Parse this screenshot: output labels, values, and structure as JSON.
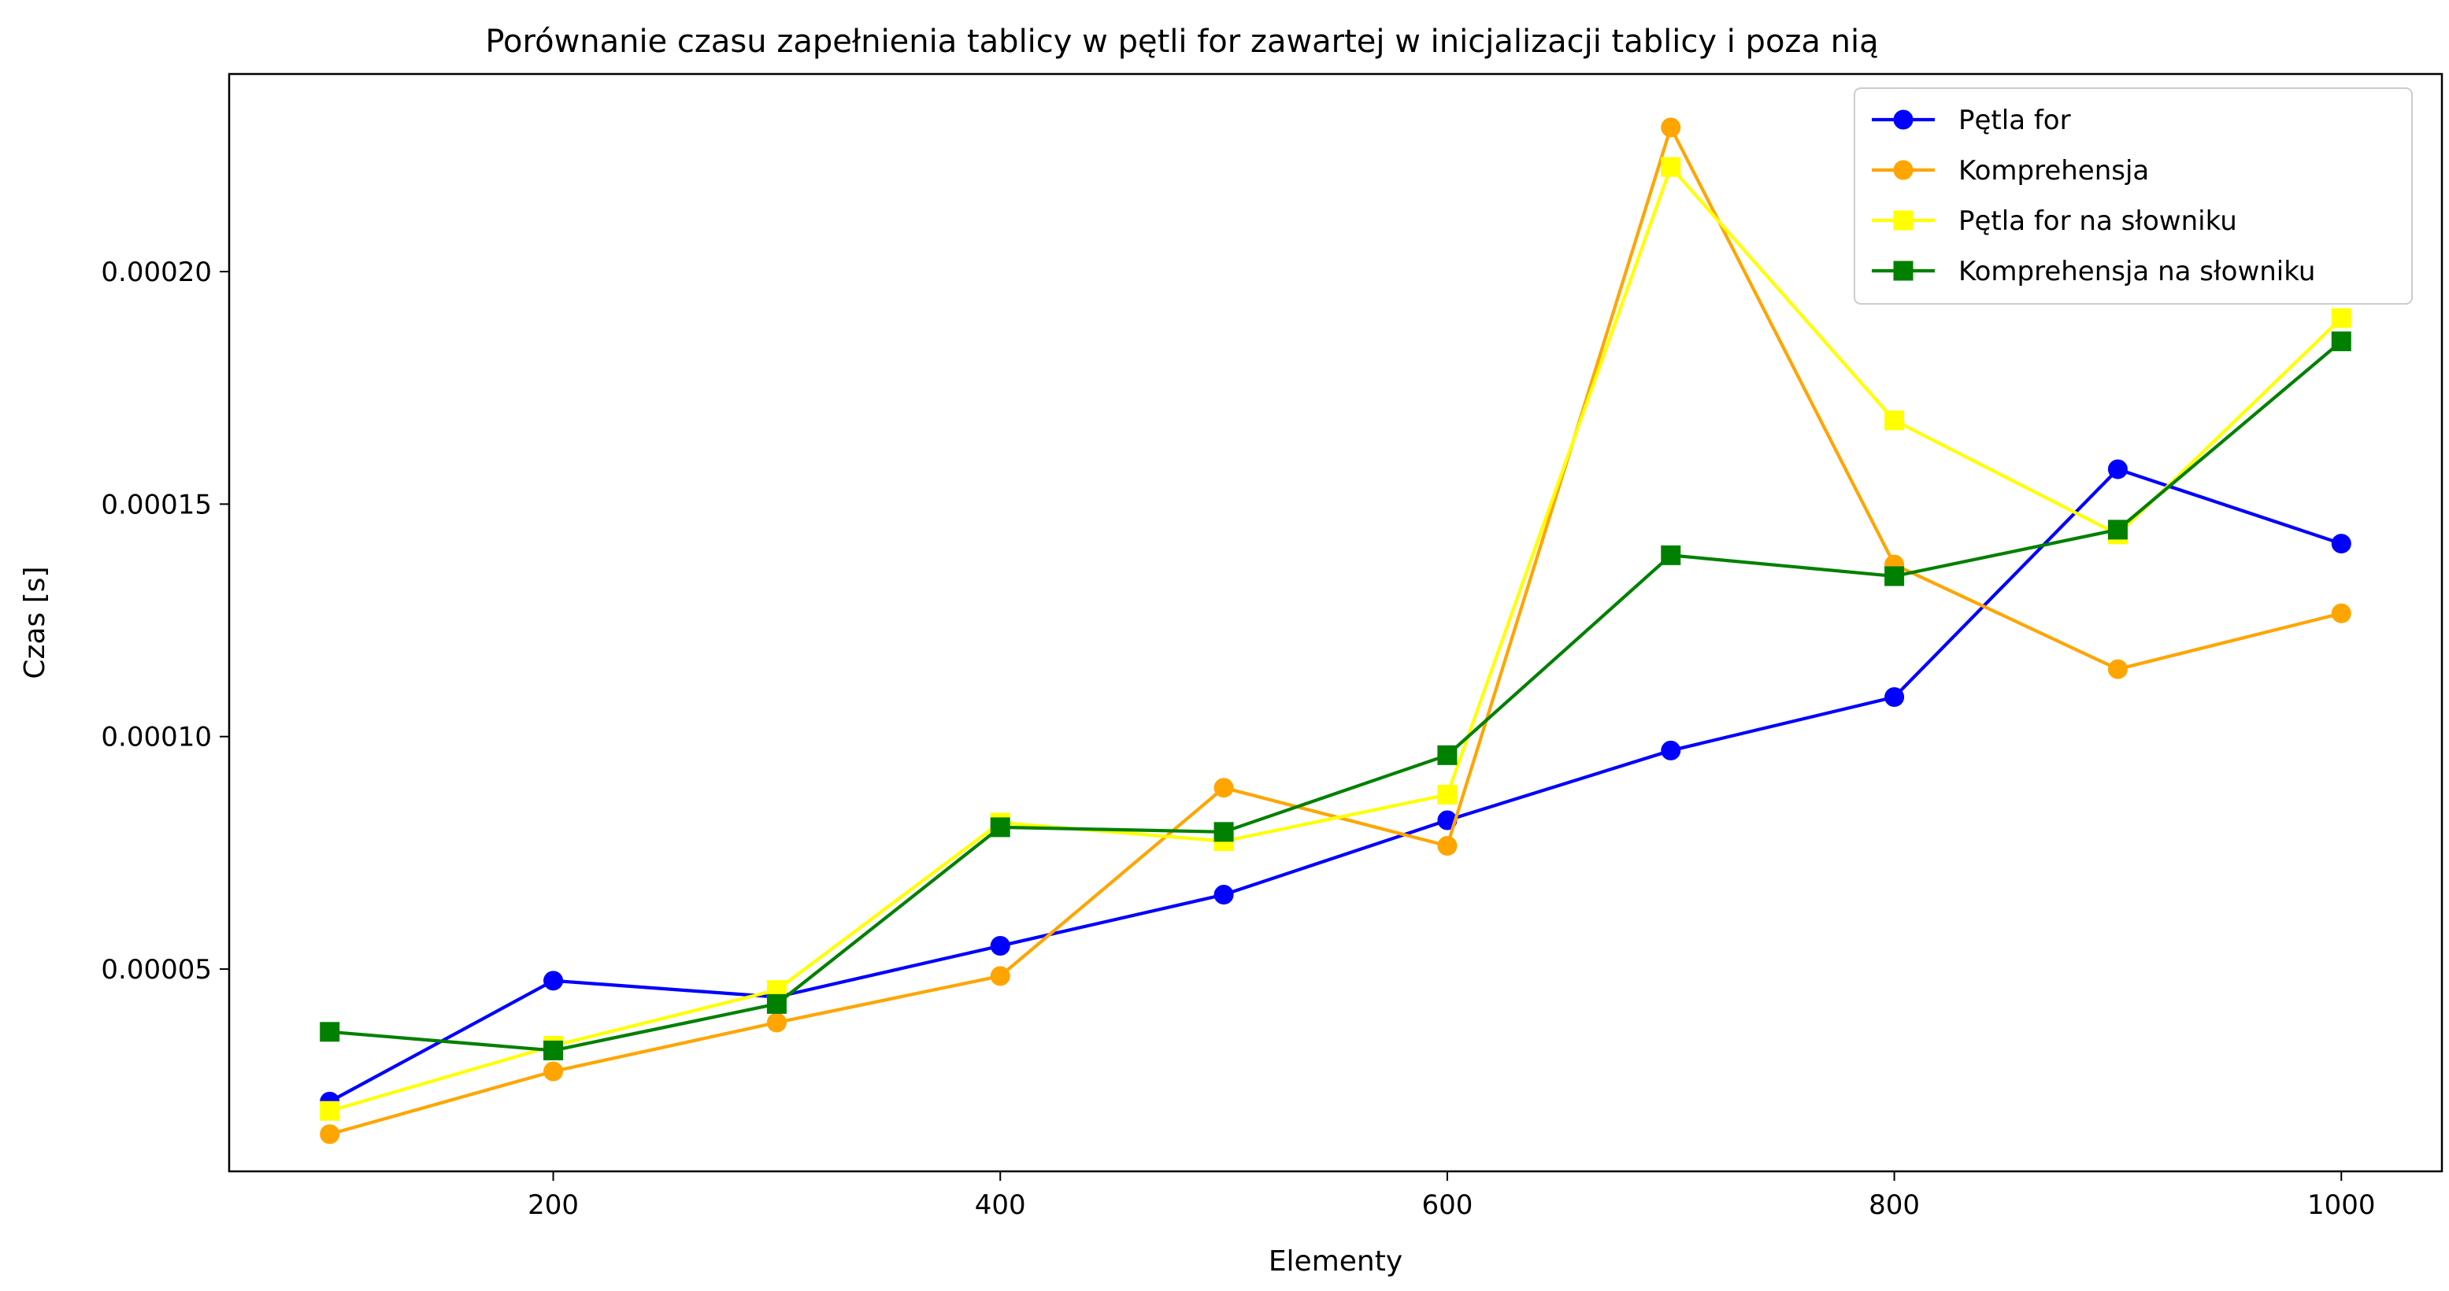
{
  "chart_data": {
    "type": "line",
    "title": "Porównanie czasu zapełnienia tablicy w pętli for zawartej w inicjalizacji tablicy i poza nią",
    "xlabel": "Elementy",
    "ylabel": "Czas [s]",
    "xlim": [
      55,
      1045
    ],
    "ylim": [
      6.5e-06,
      0.0002425
    ],
    "x_ticks": [
      200,
      400,
      600,
      800,
      1000
    ],
    "x_tick_labels": [
      "200",
      "400",
      "600",
      "800",
      "1000"
    ],
    "y_ticks": [
      5e-05,
      0.0001,
      0.00015,
      0.0002
    ],
    "y_tick_labels": [
      "0.00005",
      "0.00010",
      "0.00015",
      "0.00020"
    ],
    "grid": false,
    "legend_position": "top-right",
    "x": [
      100,
      200,
      300,
      400,
      500,
      600,
      700,
      800,
      900,
      1000
    ],
    "series": [
      {
        "name": "Pętla for",
        "color": "#0000ff",
        "marker": "circle",
        "values": [
          2.15e-05,
          4.75e-05,
          4.4e-05,
          5.5e-05,
          6.6e-05,
          8.2e-05,
          9.7e-05,
          0.0001085,
          0.0001575,
          0.0001415
        ]
      },
      {
        "name": "Komprehensja",
        "color": "#ffa500",
        "marker": "circle",
        "values": [
          1.45e-05,
          2.8e-05,
          3.85e-05,
          4.85e-05,
          8.9e-05,
          7.65e-05,
          0.000231,
          0.000137,
          0.0001145,
          0.0001265
        ]
      },
      {
        "name": "Pętla for na słowniku",
        "color": "#ffff00",
        "marker": "square",
        "values": [
          1.95e-05,
          3.35e-05,
          4.55e-05,
          8.15e-05,
          7.75e-05,
          8.75e-05,
          0.0002225,
          0.000168,
          0.0001435,
          0.00019
        ]
      },
      {
        "name": "Komprehensja na słowniku",
        "color": "#008000",
        "marker": "square",
        "values": [
          3.65e-05,
          3.25e-05,
          4.25e-05,
          8.05e-05,
          7.95e-05,
          9.6e-05,
          0.000139,
          0.0001345,
          0.0001445,
          0.000185
        ]
      }
    ]
  }
}
